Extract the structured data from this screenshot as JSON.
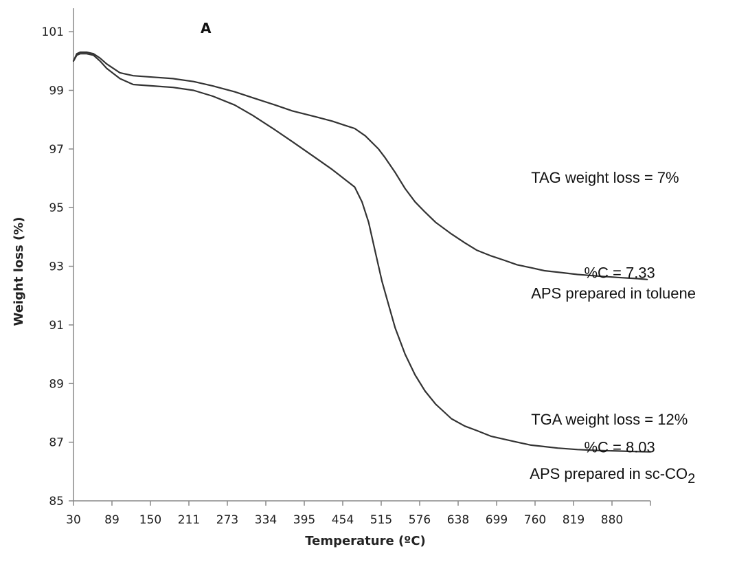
{
  "chart_data": {
    "type": "line",
    "panel_label": "A",
    "xlabel": "Temperature (ºC)",
    "ylabel": "Weight loss (%)",
    "xlim": [
      30,
      900
    ],
    "ylim": [
      85,
      101.8
    ],
    "x_ticks": [
      "30",
      "89",
      "150",
      "211",
      "273",
      "334",
      "395",
      "454",
      "515",
      "576",
      "638",
      "699",
      "760",
      "819",
      "880"
    ],
    "y_ticks": [
      "85",
      "87",
      "89",
      "91",
      "93",
      "95",
      "97",
      "99",
      "101"
    ],
    "grid": false,
    "series": [
      {
        "x": [
          30,
          35,
          40,
          50,
          60,
          70,
          80,
          100,
          120,
          150,
          180,
          211,
          240,
          273,
          300,
          334,
          360,
          395,
          420,
          440,
          454,
          470,
          490,
          500,
          515,
          530,
          545,
          560,
          576,
          600,
          620,
          638,
          660,
          680,
          699,
          720,
          740,
          760,
          790,
          819,
          850,
          880,
          895
        ],
        "y": [
          100.0,
          100.25,
          100.3,
          100.3,
          100.25,
          100.1,
          99.9,
          99.6,
          99.5,
          99.45,
          99.4,
          99.3,
          99.15,
          98.95,
          98.75,
          98.5,
          98.3,
          98.1,
          97.95,
          97.8,
          97.7,
          97.45,
          97.0,
          96.7,
          96.2,
          95.65,
          95.2,
          94.85,
          94.5,
          94.1,
          93.8,
          93.55,
          93.35,
          93.2,
          93.05,
          92.95,
          92.85,
          92.8,
          92.72,
          92.67,
          92.62,
          92.58,
          92.55
        ],
        "color": "#333333"
      },
      {
        "x": [
          30,
          35,
          40,
          50,
          60,
          70,
          80,
          100,
          120,
          150,
          180,
          211,
          240,
          273,
          300,
          334,
          360,
          395,
          420,
          440,
          454,
          465,
          475,
          485,
          495,
          505,
          515,
          530,
          545,
          560,
          576,
          600,
          620,
          638,
          660,
          680,
          699,
          720,
          740,
          760,
          790,
          819,
          850,
          880,
          900
        ],
        "y": [
          100.0,
          100.2,
          100.25,
          100.25,
          100.2,
          100.0,
          99.75,
          99.4,
          99.2,
          99.15,
          99.1,
          99.0,
          98.8,
          98.5,
          98.15,
          97.65,
          97.25,
          96.7,
          96.3,
          95.95,
          95.7,
          95.2,
          94.5,
          93.5,
          92.5,
          91.7,
          90.9,
          90.0,
          89.3,
          88.75,
          88.3,
          87.8,
          87.55,
          87.4,
          87.2,
          87.1,
          87.0,
          86.9,
          86.85,
          86.8,
          86.75,
          86.72,
          86.7,
          86.68,
          86.67
        ],
        "color": "#333333"
      }
    ],
    "annotations": [
      {
        "text": "TAG weight loss = 7%",
        "x": 720,
        "y": 95.85
      },
      {
        "text": "%C = 7.33",
        "x": 800,
        "y": 92.6
      },
      {
        "text": "APS prepared in toluene",
        "x": 720,
        "y": 91.9
      },
      {
        "text": "TGA weight loss = 12%",
        "x": 720,
        "y": 87.6
      },
      {
        "text": "%C = 8.03",
        "x": 800,
        "y": 86.65
      },
      {
        "text": "APS prepared in sc-CO",
        "subscript": "2",
        "x": 718,
        "y": 85.75
      }
    ]
  }
}
